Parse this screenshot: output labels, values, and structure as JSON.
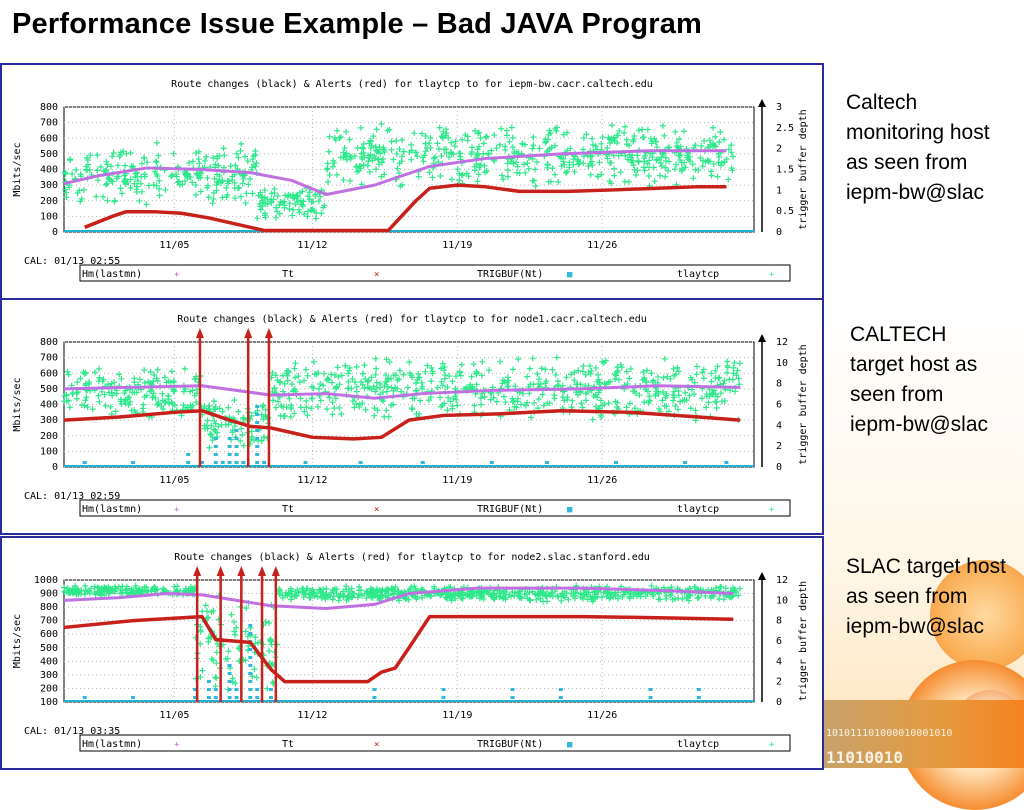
{
  "slide": {
    "title": "Performance Issue Example – Bad JAVA Program",
    "captions": [
      "Caltech monitoring host as seen from iepm-bw@slac",
      "CALTECH target host as seen from iepm-bw@slac",
      "SLAC target host as seen from iepm-bw@slac"
    ],
    "binary_decor": [
      "101011101000010001010",
      "11010010"
    ],
    "colors": {
      "title": "#000000",
      "panel_border": "#2b2ba0",
      "accent": "#f58220"
    }
  },
  "chart_data": [
    {
      "type": "scatter",
      "title": "Route changes (black) & Alerts (red) for tlaytcp to  for iepm-bw.cacr.caltech.edu",
      "ylabel": "Mbits/sec",
      "y2label": "trigger buffer depth",
      "ylim": [
        0,
        800
      ],
      "yticks": [
        0,
        100,
        200,
        300,
        400,
        500,
        600,
        700,
        800
      ],
      "y2lim": [
        0,
        3
      ],
      "y2ticks": [
        "0",
        "0.5",
        "1",
        "1.5",
        "2",
        "2.5",
        "3"
      ],
      "xlim": [
        0,
        1
      ],
      "xticks": [
        {
          "x": 0.16,
          "label": "11/05"
        },
        {
          "x": 0.36,
          "label": "11/12"
        },
        {
          "x": 0.57,
          "label": "11/19"
        },
        {
          "x": 0.78,
          "label": "11/26"
        }
      ],
      "footer": "CAL: 01/13 02:55",
      "legend": [
        "Hm(lastmn)",
        "Tt",
        "TRIGBUF(Nt)",
        "tlaytcp"
      ],
      "alerts": [],
      "series": {
        "red": [
          [
            0.03,
            30
          ],
          [
            0.07,
            100
          ],
          [
            0.09,
            130
          ],
          [
            0.13,
            130
          ],
          [
            0.17,
            120
          ],
          [
            0.21,
            90
          ],
          [
            0.25,
            50
          ],
          [
            0.29,
            10
          ],
          [
            0.47,
            10
          ],
          [
            0.51,
            200
          ],
          [
            0.53,
            280
          ],
          [
            0.57,
            300
          ],
          [
            0.61,
            290
          ],
          [
            0.66,
            260
          ],
          [
            0.73,
            260
          ],
          [
            0.8,
            270
          ],
          [
            0.86,
            280
          ],
          [
            0.92,
            290
          ],
          [
            0.96,
            290
          ]
        ],
        "purple": [
          [
            0,
            310
          ],
          [
            0.05,
            360
          ],
          [
            0.12,
            410
          ],
          [
            0.2,
            400
          ],
          [
            0.27,
            380
          ],
          [
            0.33,
            330
          ],
          [
            0.38,
            240
          ],
          [
            0.45,
            300
          ],
          [
            0.53,
            420
          ],
          [
            0.61,
            470
          ],
          [
            0.72,
            500
          ],
          [
            0.85,
            520
          ],
          [
            0.96,
            520
          ]
        ],
        "green_bands": [
          {
            "x0": 0.0,
            "x1": 0.28,
            "lo": 150,
            "hi": 580
          },
          {
            "x0": 0.28,
            "x1": 0.38,
            "lo": 80,
            "hi": 300
          },
          {
            "x0": 0.38,
            "x1": 0.97,
            "lo": 280,
            "hi": 700
          }
        ],
        "cyan": []
      }
    },
    {
      "type": "scatter",
      "title": "Route changes (black) & Alerts (red) for tlaytcp to  for node1.cacr.caltech.edu",
      "ylabel": "Mbits/sec",
      "y2label": "trigger buffer depth",
      "ylim": [
        0,
        800
      ],
      "yticks": [
        0,
        100,
        200,
        300,
        400,
        500,
        600,
        700,
        800
      ],
      "y2lim": [
        0,
        12
      ],
      "y2ticks": [
        "0",
        "2",
        "4",
        "6",
        "8",
        "10",
        "12"
      ],
      "xlim": [
        0,
        1
      ],
      "xticks": [
        {
          "x": 0.16,
          "label": "11/05"
        },
        {
          "x": 0.36,
          "label": "11/12"
        },
        {
          "x": 0.57,
          "label": "11/19"
        },
        {
          "x": 0.78,
          "label": "11/26"
        }
      ],
      "footer": "CAL: 01/13 02:59",
      "legend": [
        "Hm(lastmn)",
        "Tt",
        "TRIGBUF(Nt)",
        "tlaytcp"
      ],
      "alerts": [
        0.197,
        0.267,
        0.297
      ],
      "series": {
        "red": [
          [
            0,
            300
          ],
          [
            0.08,
            320
          ],
          [
            0.16,
            350
          ],
          [
            0.2,
            360
          ],
          [
            0.22,
            330
          ],
          [
            0.24,
            300
          ],
          [
            0.27,
            260
          ],
          [
            0.3,
            250
          ],
          [
            0.33,
            220
          ],
          [
            0.36,
            190
          ],
          [
            0.42,
            180
          ],
          [
            0.46,
            190
          ],
          [
            0.5,
            300
          ],
          [
            0.55,
            330
          ],
          [
            0.63,
            340
          ],
          [
            0.72,
            360
          ],
          [
            0.82,
            350
          ],
          [
            0.92,
            320
          ],
          [
            0.98,
            300
          ]
        ],
        "purple": [
          [
            0,
            500
          ],
          [
            0.1,
            510
          ],
          [
            0.2,
            520
          ],
          [
            0.3,
            460
          ],
          [
            0.38,
            470
          ],
          [
            0.45,
            440
          ],
          [
            0.52,
            470
          ],
          [
            0.62,
            490
          ],
          [
            0.75,
            500
          ],
          [
            0.86,
            520
          ],
          [
            0.98,
            510
          ]
        ],
        "green_bands": [
          {
            "x0": 0.0,
            "x1": 0.2,
            "lo": 300,
            "hi": 650
          },
          {
            "x0": 0.2,
            "x1": 0.3,
            "lo": 100,
            "hi": 450
          },
          {
            "x0": 0.3,
            "x1": 0.98,
            "lo": 280,
            "hi": 720
          }
        ],
        "cyan": [
          [
            0.03,
            60
          ],
          [
            0.1,
            60
          ],
          [
            0.18,
            100
          ],
          [
            0.2,
            50
          ],
          [
            0.22,
            180
          ],
          [
            0.23,
            60
          ],
          [
            0.24,
            200
          ],
          [
            0.25,
            320
          ],
          [
            0.26,
            60
          ],
          [
            0.28,
            400
          ],
          [
            0.29,
            60
          ],
          [
            0.35,
            60
          ],
          [
            0.43,
            60
          ],
          [
            0.52,
            60
          ],
          [
            0.62,
            60
          ],
          [
            0.7,
            60
          ],
          [
            0.8,
            60
          ],
          [
            0.9,
            60
          ],
          [
            0.96,
            60
          ]
        ]
      }
    },
    {
      "type": "scatter",
      "title": "Route changes (black) & Alerts (red) for tlaytcp to  for node2.slac.stanford.edu",
      "ylabel": "Mbits/sec",
      "y2label": "trigger buffer depth",
      "ylim": [
        100,
        1000
      ],
      "yticks": [
        100,
        200,
        300,
        400,
        500,
        600,
        700,
        800,
        900,
        1000
      ],
      "y2lim": [
        0,
        12
      ],
      "y2ticks": [
        "0",
        "2",
        "4",
        "6",
        "8",
        "10",
        "12"
      ],
      "xlim": [
        0,
        1
      ],
      "xticks": [
        {
          "x": 0.16,
          "label": "11/05"
        },
        {
          "x": 0.36,
          "label": "11/12"
        },
        {
          "x": 0.57,
          "label": "11/19"
        },
        {
          "x": 0.78,
          "label": "11/26"
        }
      ],
      "footer": "CAL: 01/13 03:35",
      "legend": [
        "Hm(lastmn)",
        "Tt",
        "TRIGBUF(Nt)",
        "tlaytcp"
      ],
      "alerts": [
        0.193,
        0.227,
        0.257,
        0.287,
        0.307
      ],
      "series": {
        "red": [
          [
            0,
            650
          ],
          [
            0.1,
            700
          ],
          [
            0.2,
            730
          ],
          [
            0.22,
            560
          ],
          [
            0.27,
            540
          ],
          [
            0.3,
            340
          ],
          [
            0.32,
            250
          ],
          [
            0.38,
            250
          ],
          [
            0.44,
            250
          ],
          [
            0.46,
            320
          ],
          [
            0.48,
            350
          ],
          [
            0.5,
            500
          ],
          [
            0.53,
            730
          ],
          [
            0.6,
            730
          ],
          [
            0.75,
            730
          ],
          [
            0.88,
            720
          ],
          [
            0.97,
            710
          ]
        ],
        "purple": [
          [
            0,
            850
          ],
          [
            0.08,
            870
          ],
          [
            0.15,
            900
          ],
          [
            0.2,
            890
          ],
          [
            0.25,
            850
          ],
          [
            0.3,
            810
          ],
          [
            0.38,
            790
          ],
          [
            0.45,
            820
          ],
          [
            0.5,
            900
          ],
          [
            0.6,
            940
          ],
          [
            0.75,
            940
          ],
          [
            0.88,
            920
          ],
          [
            0.97,
            900
          ]
        ],
        "green_bands": [
          {
            "x0": 0.0,
            "x1": 0.19,
            "lo": 880,
            "hi": 960
          },
          {
            "x0": 0.19,
            "x1": 0.31,
            "lo": 150,
            "hi": 900
          },
          {
            "x0": 0.31,
            "x1": 0.98,
            "lo": 840,
            "hi": 960
          }
        ],
        "cyan": [
          [
            0.03,
            170
          ],
          [
            0.1,
            170
          ],
          [
            0.19,
            190
          ],
          [
            0.21,
            300
          ],
          [
            0.22,
            190
          ],
          [
            0.24,
            400
          ],
          [
            0.25,
            190
          ],
          [
            0.27,
            700
          ],
          [
            0.28,
            190
          ],
          [
            0.3,
            190
          ],
          [
            0.45,
            190
          ],
          [
            0.55,
            190
          ],
          [
            0.65,
            190
          ],
          [
            0.72,
            190
          ],
          [
            0.85,
            190
          ],
          [
            0.92,
            190
          ]
        ]
      }
    }
  ]
}
